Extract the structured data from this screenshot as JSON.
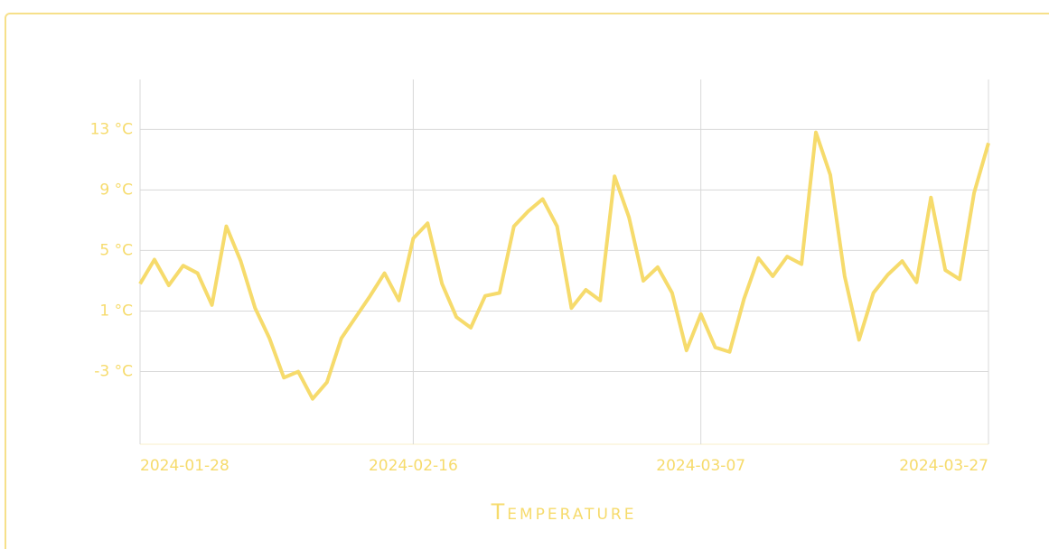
{
  "chart_data": {
    "type": "line",
    "title": "Temperature",
    "x": [
      "2024-01-28",
      "2024-01-29",
      "2024-01-30",
      "2024-01-31",
      "2024-02-01",
      "2024-02-02",
      "2024-02-03",
      "2024-02-04",
      "2024-02-05",
      "2024-02-06",
      "2024-02-07",
      "2024-02-08",
      "2024-02-09",
      "2024-02-10",
      "2024-02-11",
      "2024-02-12",
      "2024-02-13",
      "2024-02-14",
      "2024-02-15",
      "2024-02-16",
      "2024-02-17",
      "2024-02-18",
      "2024-02-19",
      "2024-02-20",
      "2024-02-21",
      "2024-02-22",
      "2024-02-23",
      "2024-02-24",
      "2024-02-25",
      "2024-02-26",
      "2024-02-27",
      "2024-02-28",
      "2024-02-29",
      "2024-03-01",
      "2024-03-02",
      "2024-03-03",
      "2024-03-04",
      "2024-03-05",
      "2024-03-06",
      "2024-03-07",
      "2024-03-08",
      "2024-03-09",
      "2024-03-10",
      "2024-03-11",
      "2024-03-12",
      "2024-03-13",
      "2024-03-14",
      "2024-03-15",
      "2024-03-16",
      "2024-03-17",
      "2024-03-18",
      "2024-03-19",
      "2024-03-20",
      "2024-03-21",
      "2024-03-22",
      "2024-03-23",
      "2024-03-24",
      "2024-03-25",
      "2024-03-26",
      "2024-03-27"
    ],
    "series": [
      {
        "name": "Temperature",
        "color": "#f6db6c",
        "values": [
          2.8,
          4.4,
          2.7,
          4.0,
          3.5,
          1.4,
          6.6,
          4.3,
          1.2,
          -0.8,
          -3.4,
          -3.0,
          -4.8,
          -3.7,
          -0.8,
          0.6,
          2.0,
          3.5,
          1.7,
          5.8,
          6.8,
          2.8,
          0.6,
          -0.1,
          2.0,
          2.2,
          6.6,
          7.6,
          8.4,
          6.6,
          1.2,
          2.4,
          1.7,
          9.9,
          7.2,
          3.0,
          3.9,
          2.2,
          -1.6,
          0.8,
          -1.4,
          -1.7,
          1.8,
          4.5,
          3.3,
          4.6,
          4.1,
          12.8,
          10.0,
          3.3,
          -0.9,
          2.2,
          3.4,
          4.3,
          2.9,
          8.5,
          3.7,
          3.1,
          8.8,
          12.1
        ]
      }
    ],
    "xlim": [
      "2024-01-28",
      "2024-03-27"
    ],
    "xticks": [
      "2024-01-28",
      "2024-02-16",
      "2024-03-07",
      "2024-03-27"
    ],
    "ylim": [
      -7.8,
      16.3
    ],
    "yticks": [
      {
        "value": -3,
        "label": "-3 °C"
      },
      {
        "value": 1,
        "label": "1 °C"
      },
      {
        "value": 5,
        "label": "5 °C"
      },
      {
        "value": 9,
        "label": "9 °C"
      },
      {
        "value": 13,
        "label": "13 °C"
      }
    ],
    "grid": true
  }
}
